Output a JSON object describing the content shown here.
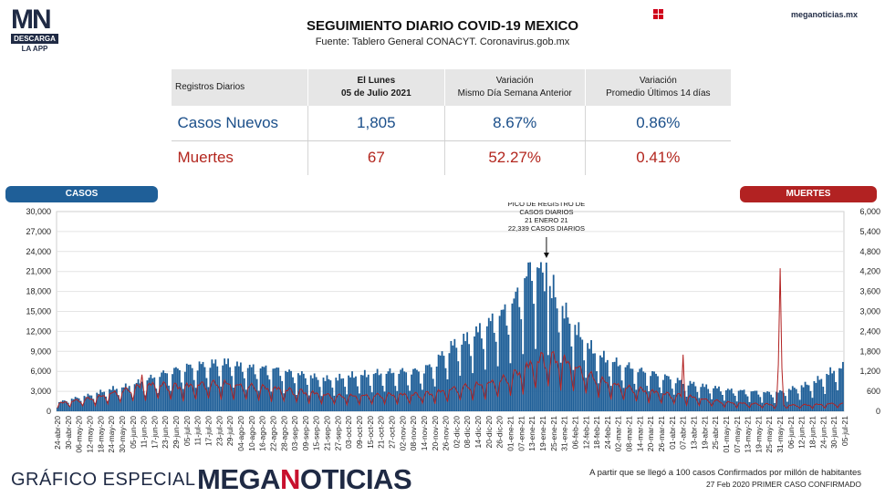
{
  "logo": {
    "mn": "MN",
    "descarga": "DESCARGA",
    "app": "LA APP"
  },
  "header": {
    "title": "SEGUIMIENTO DIARIO COVID-19 MEXICO",
    "subtitle": "Fuente: Tablero General CONACYT. Coronavirus.gob.mx",
    "site": "meganoticias.mx"
  },
  "table": {
    "col0": "Registros Diarios",
    "col1_line1": "El Lunes",
    "col1_line2": "05 de Julio 2021",
    "col2_line1": "Variación",
    "col2_line2": "Mismo Día Semana Anterior",
    "col3_line1": "Variación",
    "col3_line2": "Promedio Últimos 14 días",
    "rows": [
      {
        "label": "Casos Nuevos",
        "value": "1,805",
        "var_week": "8.67%",
        "var_14": "0.86%"
      },
      {
        "label": "Muertes",
        "value": "67",
        "var_week": "52.27%",
        "var_14": "0.41%"
      }
    ]
  },
  "legend": {
    "left": "CASOS",
    "right": "MUERTES"
  },
  "annotation": [
    "PICO DE REGISTRO DE",
    "CASOS DIARIOS",
    "21 ENERO 21",
    "22,339 CASOS DIARIOS"
  ],
  "footer": {
    "left": "GRÁFICO ESPECIAL",
    "brand_a": "MEGA",
    "brand_b": "N",
    "brand_c": "OTICIAS",
    "note1": "A partir que se llegó a 100 casos Confirmados por millón de habitantes",
    "note2": "27 Feb 2020 PRIMER CASO CONFIRMADO"
  },
  "colors": {
    "bars": "#1f5f98",
    "line": "#b22222",
    "navy": "#1f2a44"
  },
  "chart_data": {
    "type": "bar",
    "x_start": "24-abr-20",
    "x_end": "05-jul-21",
    "xlabels": [
      "24-abr-20",
      "30-abr-20",
      "06-may-20",
      "12-may-20",
      "18-may-20",
      "24-may-20",
      "30-may-20",
      "05-jun-20",
      "11-jun-20",
      "17-jun-20",
      "23-jun-20",
      "29-jun-20",
      "05-jul-20",
      "11-jul-20",
      "17-jul-20",
      "23-jul-20",
      "29-jul-20",
      "04-ago-20",
      "10-ago-20",
      "16-ago-20",
      "22-ago-20",
      "28-ago-20",
      "03-sep-20",
      "09-sep-20",
      "15-sep-20",
      "21-sep-20",
      "27-sep-20",
      "03-oct-20",
      "09-oct-20",
      "15-oct-20",
      "21-oct-20",
      "27-oct-20",
      "02-nov-20",
      "08-nov-20",
      "14-nov-20",
      "20-nov-20",
      "26-nov-20",
      "02-dic-20",
      "08-dic-20",
      "14-dic-20",
      "20-dic-20",
      "26-dic-20",
      "01-ene-21",
      "07-ene-21",
      "13-ene-21",
      "19-ene-21",
      "25-ene-21",
      "31-ene-21",
      "06-feb-21",
      "12-feb-21",
      "18-feb-21",
      "24-feb-21",
      "02-mar-21",
      "08-mar-21",
      "14-mar-21",
      "20-mar-21",
      "26-mar-21",
      "01-abr-21",
      "07-abr-21",
      "13-abr-21",
      "19-abr-21",
      "25-abr-21",
      "01-may-21",
      "07-may-21",
      "13-may-21",
      "19-may-21",
      "25-may-21",
      "31-may-21",
      "06-jun-21",
      "12-jun-21",
      "18-jun-21",
      "24-jun-21",
      "30-jun-21",
      "05-jul-21"
    ],
    "left_axis": {
      "name": "CASOS",
      "ticks": [
        "30,000",
        "27,000",
        "24,000",
        "21,000",
        "18,000",
        "15,000",
        "12,000",
        "9,000",
        "6,000",
        "3,000",
        "0"
      ],
      "ylim": [
        0,
        30000
      ]
    },
    "right_axis": {
      "name": "MUERTES",
      "ticks": [
        "6,000",
        "5,400",
        "4,800",
        "4,200",
        "3,600",
        "3,000",
        "2,400",
        "1,800",
        "1,200",
        "600",
        "0"
      ],
      "ylim": [
        0,
        6000
      ]
    },
    "peak": {
      "date": "21-ene-21",
      "value": 22339
    },
    "series": [
      {
        "name": "CASOS",
        "type": "bar",
        "weekly_avg": [
          1100,
          1500,
          1800,
          2100,
          2500,
          2900,
          3100,
          3500,
          4000,
          4500,
          5000,
          5400,
          5800,
          6000,
          6200,
          6400,
          6400,
          5900,
          5700,
          5600,
          5500,
          5200,
          4900,
          4700,
          4400,
          4200,
          4300,
          4600,
          4700,
          4900,
          5000,
          5100,
          5200,
          5200,
          5500,
          6300,
          8000,
          9000,
          9600,
          10500,
          11500,
          12500,
          13500,
          16000,
          19000,
          17500,
          15000,
          13000,
          11000,
          9000,
          7500,
          6800,
          6200,
          5800,
          5300,
          5000,
          4600,
          4300,
          3800,
          3600,
          3300,
          3100,
          2800,
          2700,
          2600,
          2500,
          2400,
          2500,
          2900,
          3300,
          3700,
          4500,
          5400,
          5800
        ]
      },
      {
        "name": "MUERTES",
        "type": "line",
        "weekly_avg": [
          200,
          250,
          290,
          330,
          380,
          460,
          520,
          600,
          650,
          700,
          680,
          650,
          660,
          690,
          710,
          720,
          700,
          650,
          640,
          610,
          590,
          570,
          530,
          500,
          460,
          420,
          400,
          390,
          400,
          400,
          420,
          430,
          430,
          440,
          450,
          480,
          540,
          600,
          640,
          680,
          720,
          800,
          900,
          1050,
          1250,
          1400,
          1380,
          1300,
          1150,
          980,
          830,
          740,
          660,
          600,
          560,
          520,
          470,
          430,
          400,
          360,
          300,
          270,
          230,
          210,
          200,
          190,
          180,
          170,
          160,
          160,
          170,
          180,
          200,
          190
        ]
      }
    ]
  }
}
